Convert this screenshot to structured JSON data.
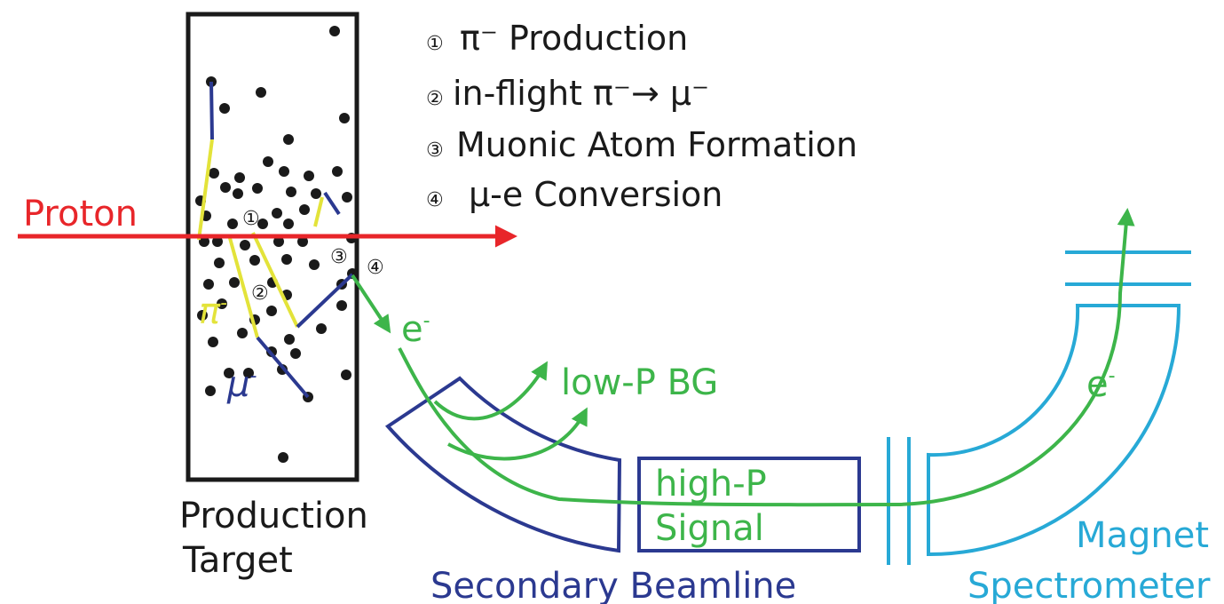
{
  "steps": [
    {
      "num": "①",
      "label": "π⁻ Production"
    },
    {
      "num": "②",
      "label": "in-flight π⁻→ μ⁻"
    },
    {
      "num": "③",
      "label": "Muonic Atom Formation"
    },
    {
      "num": "④",
      "label": "μ-e Conversion"
    }
  ],
  "labels": {
    "proton": "Proton",
    "production_target_line1": "Production",
    "production_target_line2": "Target",
    "pion": "π",
    "pion_sup": "-",
    "muon": "μ",
    "muon_sup": "-",
    "electron": "e",
    "electron_sup": "-",
    "low_p_bg": "low-P BG",
    "high_p_line1": "high-P",
    "high_p_line2": "Signal",
    "secondary_beamline": "Secondary Beamline",
    "magnet_line1": "Magnet",
    "magnet_line2": "Spectrometer",
    "electron_spectrometer": "e",
    "electron_spectrometer_sup": "-"
  },
  "markers": {
    "m1": "①",
    "m2": "②",
    "m3": "③",
    "m4": "④"
  },
  "colors": {
    "proton": "#e8262a",
    "pion": "#e3e33a",
    "muon": "#2b3990",
    "electron": "#3db54a",
    "beamline": "#2b3990",
    "spectrometer": "#27a9d6",
    "target": "#1a1a1a"
  }
}
